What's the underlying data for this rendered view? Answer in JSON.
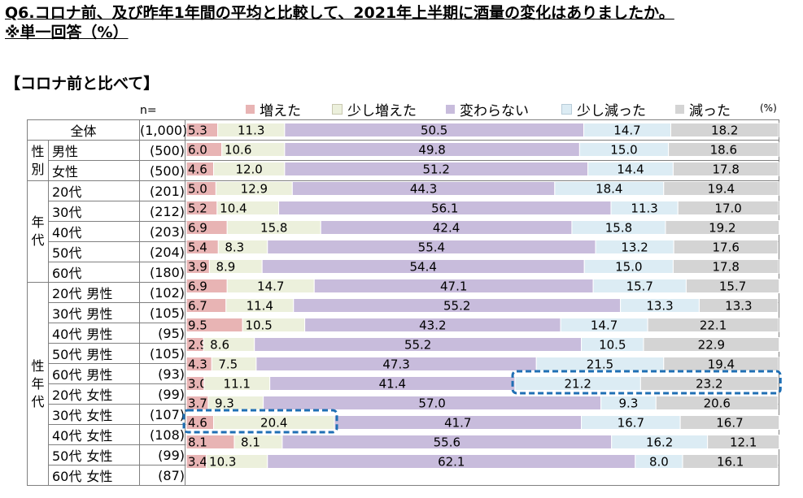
{
  "question": {
    "line1": "Q6.コロナ前、及び昨年1年間の平均と比較して、2021年上半期に酒量の変化はありましたか。",
    "line2": "※単一回答（%）"
  },
  "section_title": "【コロナ前と比べて】",
  "n_header": "n=",
  "unit": "(%)",
  "colors": {
    "増えた": "#e8b4b4",
    "少し増えた": "#ecf0dc",
    "変わらない": "#c8bcdc",
    "少し減った": "#dcecf4",
    "減った": "#d4d4d4",
    "highlight": "#1f6fb4"
  },
  "groups": [
    {
      "label": "",
      "rows": [
        0
      ]
    },
    {
      "label": "性別",
      "rows": [
        1,
        2
      ]
    },
    {
      "label": "年代",
      "rows": [
        3,
        4,
        5,
        6,
        7
      ]
    },
    {
      "label": "性年代",
      "rows": [
        8,
        9,
        10,
        11,
        12,
        13,
        14,
        15,
        16,
        17
      ]
    }
  ],
  "rows": [
    {
      "label": "全体",
      "gender": "",
      "n": "(1,000)"
    },
    {
      "label": "男性",
      "gender": "",
      "n": "(500)"
    },
    {
      "label": "女性",
      "gender": "",
      "n": "(500)"
    },
    {
      "label": "20代",
      "gender": "",
      "n": "(201)"
    },
    {
      "label": "30代",
      "gender": "",
      "n": "(212)"
    },
    {
      "label": "40代",
      "gender": "",
      "n": "(203)"
    },
    {
      "label": "50代",
      "gender": "",
      "n": "(204)"
    },
    {
      "label": "60代",
      "gender": "",
      "n": "(180)"
    },
    {
      "label": "20代",
      "gender": "男性",
      "n": "(102)"
    },
    {
      "label": "30代",
      "gender": "男性",
      "n": "(105)"
    },
    {
      "label": "40代",
      "gender": "男性",
      "n": "(95)"
    },
    {
      "label": "50代",
      "gender": "男性",
      "n": "(105)"
    },
    {
      "label": "60代",
      "gender": "男性",
      "n": "(93)"
    },
    {
      "label": "20代",
      "gender": "女性",
      "n": "(99)"
    },
    {
      "label": "30代",
      "gender": "女性",
      "n": "(107)"
    },
    {
      "label": "40代",
      "gender": "女性",
      "n": "(108)"
    },
    {
      "label": "50代",
      "gender": "女性",
      "n": "(99)"
    },
    {
      "label": "60代",
      "gender": "女性",
      "n": "(87)"
    }
  ],
  "chart_data": {
    "type": "bar",
    "stacked": true,
    "orientation": "horizontal",
    "unit": "%",
    "categories": [
      "全体",
      "男性",
      "女性",
      "20代",
      "30代",
      "40代",
      "50代",
      "60代",
      "20代 男性",
      "30代 男性",
      "40代 男性",
      "50代 男性",
      "60代 男性",
      "20代 女性",
      "30代 女性",
      "40代 女性",
      "50代 女性",
      "60代 女性"
    ],
    "series": [
      {
        "name": "増えた",
        "values": [
          5.3,
          6.0,
          4.6,
          5.0,
          5.2,
          6.9,
          5.4,
          3.9,
          6.9,
          6.7,
          9.5,
          2.9,
          4.3,
          3.0,
          3.7,
          4.6,
          8.1,
          3.4
        ]
      },
      {
        "name": "少し増えた",
        "values": [
          11.3,
          10.6,
          12.0,
          12.9,
          10.4,
          15.8,
          8.3,
          8.9,
          14.7,
          11.4,
          10.5,
          8.6,
          7.5,
          11.1,
          9.3,
          20.4,
          8.1,
          10.3
        ]
      },
      {
        "name": "変わらない",
        "values": [
          50.5,
          49.8,
          51.2,
          44.3,
          56.1,
          42.4,
          55.4,
          54.4,
          47.1,
          55.2,
          43.2,
          55.2,
          47.3,
          41.4,
          57.0,
          41.7,
          55.6,
          62.1
        ]
      },
      {
        "name": "少し減った",
        "values": [
          14.7,
          15.0,
          14.4,
          18.4,
          11.3,
          15.8,
          13.2,
          15.0,
          15.7,
          13.3,
          14.7,
          10.5,
          21.5,
          21.2,
          9.3,
          16.7,
          16.2,
          8.0
        ]
      },
      {
        "name": "減った",
        "values": [
          18.2,
          18.6,
          17.8,
          19.4,
          17.0,
          19.2,
          17.6,
          17.8,
          15.7,
          13.3,
          22.1,
          22.9,
          19.4,
          23.2,
          20.6,
          16.7,
          12.1,
          16.1
        ]
      }
    ],
    "xlim": [
      0,
      100
    ],
    "legend_position": "top",
    "highlights": [
      {
        "category": "20代 女性",
        "series": [
          "少し減った",
          "減った"
        ]
      },
      {
        "category": "40代 女性",
        "series": [
          "増えた",
          "少し増えた"
        ]
      }
    ]
  }
}
